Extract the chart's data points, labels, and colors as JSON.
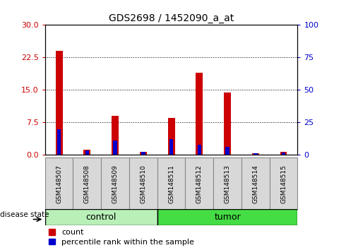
{
  "title": "GDS2698 / 1452090_a_at",
  "samples": [
    "GSM148507",
    "GSM148508",
    "GSM148509",
    "GSM148510",
    "GSM148511",
    "GSM148512",
    "GSM148513",
    "GSM148514",
    "GSM148515"
  ],
  "count_values": [
    24.0,
    1.2,
    9.0,
    0.7,
    8.5,
    19.0,
    14.5,
    0.4,
    0.8
  ],
  "percentile_values": [
    20.0,
    3.5,
    11.0,
    2.5,
    12.0,
    8.0,
    6.5,
    1.5,
    2.0
  ],
  "groups": [
    "control",
    "control",
    "control",
    "control",
    "tumor",
    "tumor",
    "tumor",
    "tumor",
    "tumor"
  ],
  "control_color_light": "#b8f0b8",
  "tumor_color_bright": "#44dd44",
  "bar_color_red": "#cc0000",
  "bar_color_blue": "#0000cc",
  "ylim_left": [
    0,
    30
  ],
  "ylim_right": [
    0,
    100
  ],
  "yticks_left": [
    0,
    7.5,
    15,
    22.5,
    30
  ],
  "yticks_right": [
    0,
    25,
    50,
    75,
    100
  ],
  "ylabel_left_color": "#cc0000",
  "ylabel_right_color": "#0000cc",
  "legend_count": "count",
  "legend_percentile": "percentile rank within the sample",
  "disease_state_label": "disease state",
  "tick_bg_color": "#d8d8d8",
  "bar_width": 0.25
}
